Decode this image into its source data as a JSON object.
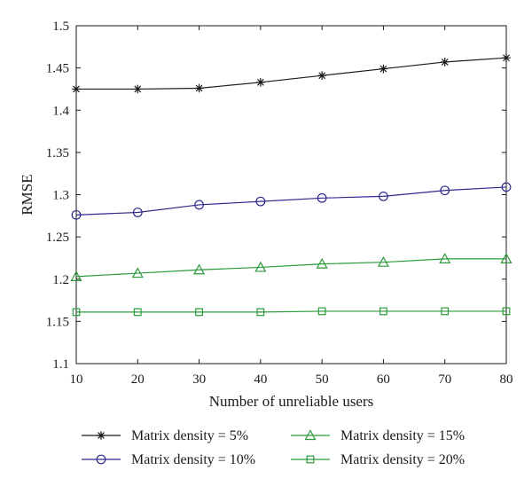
{
  "chart_data": {
    "type": "line",
    "xlabel": "Number of unreliable users",
    "ylabel": "RMSE",
    "xlim": [
      10,
      80
    ],
    "ylim": [
      1.1,
      1.5
    ],
    "grid": false,
    "legend_placement": "bottom",
    "x": [
      10,
      20,
      30,
      40,
      50,
      60,
      70,
      80
    ],
    "x_ticks": [
      "10",
      "20",
      "30",
      "40",
      "50",
      "60",
      "70",
      "80"
    ],
    "y_ticks": [
      "1.1",
      "1.15",
      "1.2",
      "1.25",
      "1.3",
      "1.35",
      "1.4",
      "1.45",
      "1.5"
    ],
    "series": [
      {
        "name": "Matrix density = 5%",
        "color": "#1a1a1a",
        "marker": "star",
        "values": [
          1.425,
          1.425,
          1.426,
          1.433,
          1.441,
          1.449,
          1.457,
          1.462
        ]
      },
      {
        "name": "Matrix density = 10%",
        "color": "#2e2a8c",
        "marker": "circle",
        "values": [
          1.276,
          1.279,
          1.288,
          1.292,
          1.296,
          1.298,
          1.305,
          1.309
        ]
      },
      {
        "name": "Matrix density = 15%",
        "color": "#2a9a3a",
        "marker": "triangle",
        "values": [
          1.203,
          1.207,
          1.211,
          1.214,
          1.218,
          1.22,
          1.224,
          1.224
        ]
      },
      {
        "name": "Matrix density = 20%",
        "color": "#2a9a3a",
        "marker": "square",
        "values": [
          1.161,
          1.161,
          1.161,
          1.161,
          1.162,
          1.162,
          1.162,
          1.162
        ]
      }
    ]
  }
}
